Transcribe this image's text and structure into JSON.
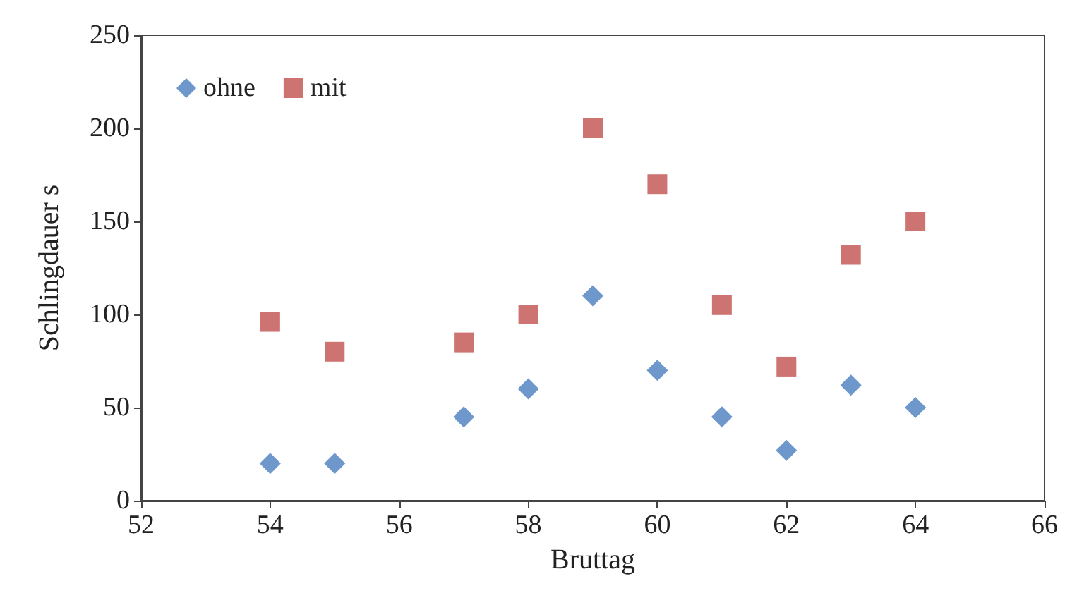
{
  "chart_data": {
    "type": "scatter",
    "xlabel": "Bruttag",
    "ylabel": "Schlingdauer s",
    "xlim": [
      52,
      66
    ],
    "xticks": [
      52,
      54,
      56,
      58,
      60,
      62,
      64,
      66
    ],
    "ylim": [
      0,
      250
    ],
    "yticks": [
      0,
      50,
      100,
      150,
      200,
      250
    ],
    "grid": false,
    "legend": "top left",
    "series": [
      {
        "name": "ohne",
        "color": "#4a7ebf",
        "marker": "diamond",
        "x": [
          54,
          55,
          57,
          58,
          59,
          60,
          61,
          62,
          63,
          64
        ],
        "values": [
          20,
          20,
          45,
          60,
          110,
          70,
          45,
          27,
          62,
          50
        ]
      },
      {
        "name": "mit",
        "color": "#c0504d",
        "marker": "square",
        "x": [
          54,
          55,
          57,
          58,
          59,
          60,
          61,
          62,
          63,
          64
        ],
        "values": [
          96,
          80,
          85,
          100,
          200,
          170,
          105,
          72,
          132,
          150
        ]
      }
    ]
  }
}
